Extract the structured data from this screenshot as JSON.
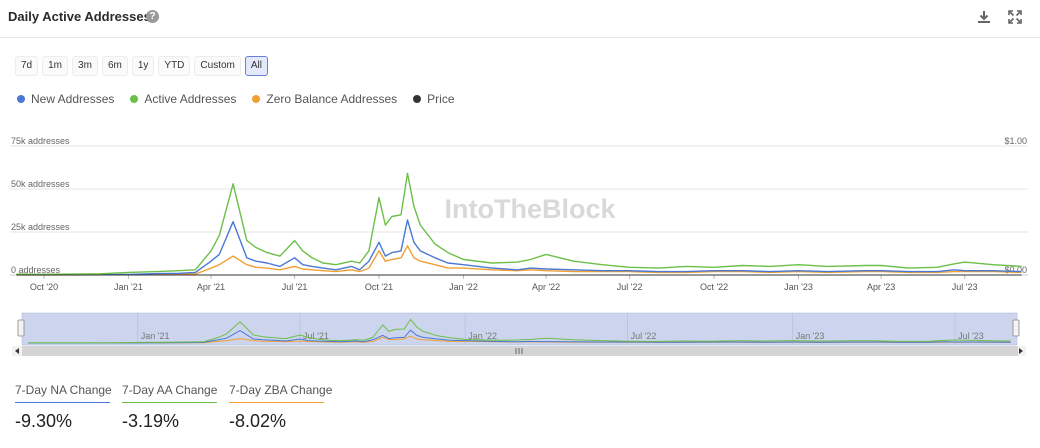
{
  "header": {
    "title": "Daily Active Addresses",
    "help_icon": "question-circle-icon",
    "download_icon": "download-icon",
    "fullscreen_icon": "expand-icon"
  },
  "ranges": [
    "7d",
    "1m",
    "3m",
    "6m",
    "1y",
    "YTD",
    "Custom",
    "All"
  ],
  "active_range": "All",
  "watermark": "IntoTheBlock",
  "colors": {
    "new": "#4a78d4",
    "active": "#6cbf48",
    "zero": "#f0a032",
    "price": "#333333",
    "navigator_fill": "#cdd5ee"
  },
  "chart_data": {
    "type": "line",
    "title": "Daily Active Addresses",
    "x": [
      "2020-09-01",
      "2020-10-01",
      "2020-11-01",
      "2020-12-01",
      "2021-01-01",
      "2021-02-01",
      "2021-02-25",
      "2021-03-15",
      "2021-04-01",
      "2021-04-10",
      "2021-04-25",
      "2021-05-10",
      "2021-05-20",
      "2021-06-01",
      "2021-06-15",
      "2021-07-01",
      "2021-07-10",
      "2021-07-20",
      "2021-08-01",
      "2021-08-15",
      "2021-09-01",
      "2021-09-10",
      "2021-09-20",
      "2021-10-01",
      "2021-10-08",
      "2021-10-15",
      "2021-10-25",
      "2021-11-01",
      "2021-11-08",
      "2021-11-15",
      "2021-12-01",
      "2021-12-15",
      "2022-01-01",
      "2022-02-01",
      "2022-03-01",
      "2022-03-15",
      "2022-04-01",
      "2022-05-01",
      "2022-06-01",
      "2022-07-01",
      "2022-08-01",
      "2022-09-01",
      "2022-10-01",
      "2022-11-01",
      "2022-12-01",
      "2023-01-01",
      "2023-02-01",
      "2023-03-15",
      "2023-04-01",
      "2023-05-01",
      "2023-06-01",
      "2023-06-20",
      "2023-07-01",
      "2023-08-01",
      "2023-09-01"
    ],
    "series": [
      {
        "name": "New Addresses",
        "axis": "left",
        "values": [
          100,
          100,
          100,
          200,
          300,
          800,
          1000,
          1500,
          8000,
          12000,
          31000,
          10000,
          8000,
          7000,
          5000,
          10000,
          6000,
          5000,
          4000,
          3000,
          5000,
          3000,
          8000,
          19000,
          11000,
          13000,
          14000,
          32000,
          19000,
          14000,
          10000,
          7000,
          6000,
          4000,
          3000,
          4000,
          3500,
          3000,
          2500,
          2500,
          2000,
          2000,
          2500,
          2500,
          2000,
          2500,
          2000,
          2500,
          2500,
          2000,
          2000,
          3000,
          2500,
          2500,
          2000
        ]
      },
      {
        "name": "Active Addresses",
        "axis": "left",
        "values": [
          500,
          400,
          500,
          700,
          1500,
          2000,
          2500,
          3000,
          14000,
          23000,
          53000,
          20000,
          16000,
          13000,
          11000,
          20000,
          14000,
          10000,
          7000,
          6000,
          8000,
          7000,
          14000,
          45000,
          29000,
          34000,
          35000,
          59000,
          40000,
          29000,
          18000,
          13000,
          9000,
          7000,
          7500,
          9000,
          12000,
          8000,
          6000,
          4500,
          4000,
          5000,
          4500,
          5500,
          5000,
          6000,
          5000,
          5500,
          5500,
          4000,
          4500,
          6500,
          7500,
          6000,
          5000
        ]
      },
      {
        "name": "Zero Balance Addresses",
        "axis": "left",
        "values": [
          50,
          50,
          50,
          100,
          150,
          300,
          400,
          500,
          4000,
          6000,
          11000,
          6000,
          4500,
          4000,
          3000,
          5000,
          3500,
          3000,
          2500,
          2000,
          3000,
          2000,
          4000,
          14000,
          8000,
          9000,
          10000,
          17000,
          10000,
          8000,
          6000,
          4000,
          4000,
          3000,
          2500,
          3000,
          2500,
          2000,
          2000,
          2000,
          1500,
          1500,
          2000,
          2000,
          1500,
          2000,
          1500,
          2000,
          2000,
          1500,
          1500,
          2000,
          2000,
          2000,
          1500
        ]
      },
      {
        "name": "Price",
        "axis": "right",
        "values": [
          0,
          0,
          0,
          0,
          0,
          0,
          0,
          0,
          0,
          0,
          0,
          0,
          0,
          0,
          0,
          0,
          0,
          0,
          0,
          0,
          0,
          0,
          0,
          0,
          0,
          0,
          0,
          0,
          0,
          0,
          0,
          0,
          0,
          0,
          0,
          0,
          0,
          0,
          0,
          0,
          0,
          0,
          0,
          0,
          0,
          0,
          0,
          0,
          0,
          0,
          0,
          0,
          0,
          0,
          0
        ]
      }
    ],
    "x_ticks": [
      {
        "date": "2020-10-01",
        "label": "Oct '20"
      },
      {
        "date": "2021-01-01",
        "label": "Jan '21"
      },
      {
        "date": "2021-04-01",
        "label": "Apr '21"
      },
      {
        "date": "2021-07-01",
        "label": "Jul '21"
      },
      {
        "date": "2021-10-01",
        "label": "Oct '21"
      },
      {
        "date": "2022-01-01",
        "label": "Jan '22"
      },
      {
        "date": "2022-04-01",
        "label": "Apr '22"
      },
      {
        "date": "2022-07-01",
        "label": "Jul '22"
      },
      {
        "date": "2022-10-01",
        "label": "Oct '22"
      },
      {
        "date": "2023-01-01",
        "label": "Jan '23"
      },
      {
        "date": "2023-04-01",
        "label": "Apr '23"
      },
      {
        "date": "2023-07-01",
        "label": "Jul '23"
      }
    ],
    "y_ticks_left": [
      {
        "value": 0,
        "label": "0 addresses"
      },
      {
        "value": 25000,
        "label": "25k addresses"
      },
      {
        "value": 50000,
        "label": "50k addresses"
      },
      {
        "value": 75000,
        "label": "75k addresses"
      }
    ],
    "y_ticks_right": [
      {
        "value": 0,
        "label": "$0.00"
      },
      {
        "value": 1,
        "label": "$1.00"
      }
    ],
    "ylim_left": [
      0,
      75000
    ],
    "ylim_right": [
      0,
      1
    ],
    "xlim": [
      "2020-08-25",
      "2023-09-08"
    ],
    "grid": true,
    "legend_position": "top-left"
  },
  "navigator": {
    "labels": [
      {
        "date": "2021-01-01",
        "label": "Jan '21"
      },
      {
        "date": "2021-07-01",
        "label": "Jul '21"
      },
      {
        "date": "2022-01-01",
        "label": "Jan '22"
      },
      {
        "date": "2022-07-01",
        "label": "Jul '22"
      },
      {
        "date": "2023-01-01",
        "label": "Jan '23"
      },
      {
        "date": "2023-07-01",
        "label": "Jul '23"
      }
    ],
    "left_arrow": "arrow-left-icon",
    "right_arrow": "arrow-right-icon",
    "scroll_grip": "grip-icon"
  },
  "stats": [
    {
      "label": "7-Day NA Change",
      "value": "-9.30%",
      "color": "#4a78d4"
    },
    {
      "label": "7-Day AA Change",
      "value": "-3.19%",
      "color": "#6cbf48"
    },
    {
      "label": "7-Day ZBA Change",
      "value": "-8.02%",
      "color": "#f0a032"
    }
  ]
}
